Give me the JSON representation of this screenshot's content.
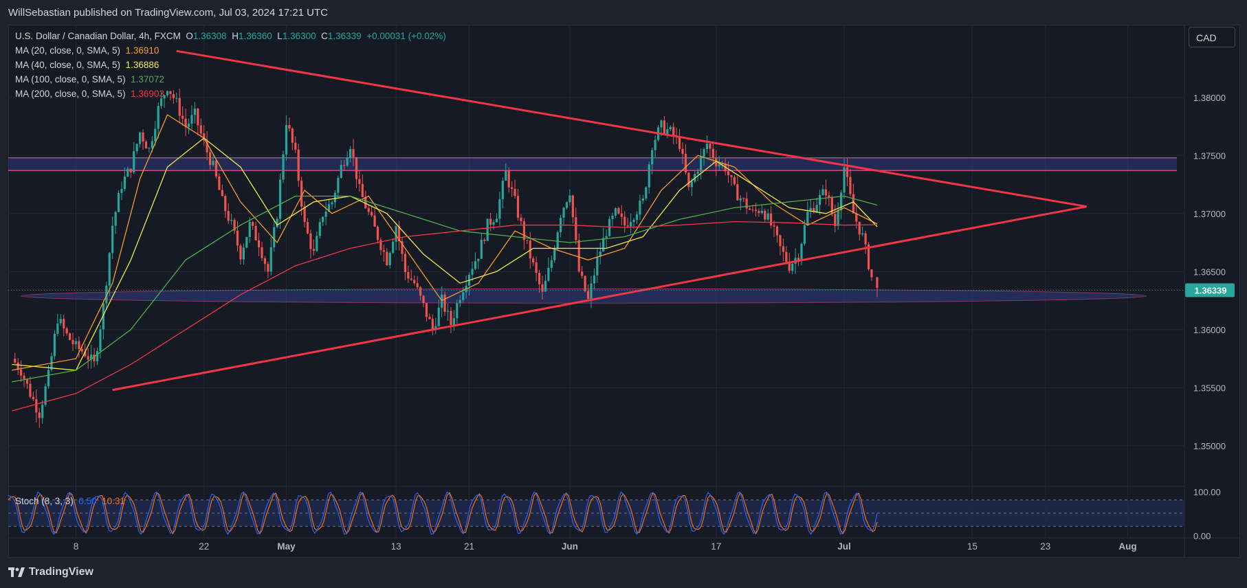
{
  "header": {
    "published": "WillSebastian published on TradingView.com, Jul 03, 2024 17:21 UTC"
  },
  "footer": {
    "brand": "TradingView"
  },
  "currency_button": "CAD",
  "legend": {
    "symbol": "U.S. Dollar / Canadian Dollar, 4h, FXCM",
    "o_label": "O",
    "o_value": "1.36308",
    "h_label": "H",
    "h_value": "1.36360",
    "l_label": "L",
    "l_value": "1.36300",
    "c_label": "C",
    "c_value": "1.36339",
    "change": "+0.00031 (+0.02%)",
    "mas": [
      {
        "label": "MA (20, close, 0, SMA, 5)",
        "value": "1.36910",
        "color": "#f59b2b"
      },
      {
        "label": "MA (40, close, 0, SMA, 5)",
        "value": "1.36886",
        "color": "#f5e94a"
      },
      {
        "label": "MA (100, close, 0, SMA, 5)",
        "value": "1.37072",
        "color": "#4caf50"
      },
      {
        "label": "MA (200, close, 0, SMA, 5)",
        "value": "1.36903",
        "color": "#f23645"
      }
    ]
  },
  "stoch_legend": {
    "label": "Stoch (8, 3, 3)",
    "k_value": "0.50",
    "d_value": "10.31",
    "k_color": "#2962ff",
    "d_color": "#ff6d00"
  },
  "chart_data": {
    "type": "candlestick",
    "symbol": "USDCAD",
    "timeframe": "4h",
    "y_ticks": [
      "1.38000",
      "1.37500",
      "1.37000",
      "1.36500",
      "1.36000",
      "1.35500",
      "1.35000"
    ],
    "y_tick_values": [
      1.38,
      1.375,
      1.37,
      1.365,
      1.36,
      1.355,
      1.35
    ],
    "ylim": [
      1.3465,
      1.3862
    ],
    "x_ticks": [
      {
        "label": "8",
        "day": 8
      },
      {
        "label": "22",
        "day": 22
      },
      {
        "label": "May",
        "day": 31,
        "bold": true
      },
      {
        "label": "13",
        "day": 43
      },
      {
        "label": "21",
        "day": 51
      },
      {
        "label": "Jun",
        "day": 62,
        "bold": true
      },
      {
        "label": "17",
        "day": 78
      },
      {
        "label": "Jul",
        "day": 92,
        "bold": true
      },
      {
        "label": "15",
        "day": 106
      },
      {
        "label": "23",
        "day": 114
      },
      {
        "label": "Aug",
        "day": 123,
        "bold": true
      }
    ],
    "current_price": {
      "label": "1.36339",
      "value": 1.36339
    },
    "close_path": [
      [
        1,
        1.3575
      ],
      [
        2,
        1.3565
      ],
      [
        3,
        1.3545
      ],
      [
        4,
        1.3528
      ],
      [
        5,
        1.356
      ],
      [
        6,
        1.361
      ],
      [
        7,
        1.3595
      ],
      [
        8,
        1.3585
      ],
      [
        9,
        1.358
      ],
      [
        10,
        1.357
      ],
      [
        11,
        1.362
      ],
      [
        12,
        1.369
      ],
      [
        13,
        1.3725
      ],
      [
        14,
        1.374
      ],
      [
        15,
        1.377
      ],
      [
        16,
        1.3755
      ],
      [
        17,
        1.379
      ],
      [
        18,
        1.381
      ],
      [
        19,
        1.3795
      ],
      [
        20,
        1.3775
      ],
      [
        21,
        1.3785
      ],
      [
        22,
        1.376
      ],
      [
        23,
        1.374
      ],
      [
        24,
        1.371
      ],
      [
        25,
        1.369
      ],
      [
        26,
        1.3665
      ],
      [
        27,
        1.369
      ],
      [
        28,
        1.3675
      ],
      [
        29,
        1.365
      ],
      [
        30,
        1.37
      ],
      [
        31,
        1.378
      ],
      [
        32,
        1.375
      ],
      [
        33,
        1.369
      ],
      [
        34,
        1.3665
      ],
      [
        35,
        1.37
      ],
      [
        36,
        1.371
      ],
      [
        37,
        1.374
      ],
      [
        38,
        1.376
      ],
      [
        39,
        1.372
      ],
      [
        40,
        1.37
      ],
      [
        41,
        1.368
      ],
      [
        42,
        1.366
      ],
      [
        43,
        1.369
      ],
      [
        44,
        1.365
      ],
      [
        45,
        1.364
      ],
      [
        46,
        1.362
      ],
      [
        47,
        1.36
      ],
      [
        48,
        1.3625
      ],
      [
        49,
        1.3605
      ],
      [
        50,
        1.363
      ],
      [
        51,
        1.365
      ],
      [
        52,
        1.3665
      ],
      [
        53,
        1.369
      ],
      [
        54,
        1.37
      ],
      [
        55,
        1.3735
      ],
      [
        56,
        1.371
      ],
      [
        57,
        1.368
      ],
      [
        58,
        1.3655
      ],
      [
        59,
        1.363
      ],
      [
        60,
        1.366
      ],
      [
        61,
        1.37
      ],
      [
        62,
        1.372
      ],
      [
        63,
        1.365
      ],
      [
        64,
        1.3625
      ],
      [
        65,
        1.366
      ],
      [
        66,
        1.3685
      ],
      [
        67,
        1.37
      ],
      [
        68,
        1.369
      ],
      [
        69,
        1.37
      ],
      [
        70,
        1.371
      ],
      [
        71,
        1.376
      ],
      [
        72,
        1.3775
      ],
      [
        73,
        1.377
      ],
      [
        74,
        1.376
      ],
      [
        75,
        1.372
      ],
      [
        76,
        1.374
      ],
      [
        77,
        1.376
      ],
      [
        78,
        1.3745
      ],
      [
        79,
        1.374
      ],
      [
        80,
        1.372
      ],
      [
        81,
        1.371
      ],
      [
        82,
        1.37
      ],
      [
        83,
        1.3705
      ],
      [
        84,
        1.369
      ],
      [
        85,
        1.367
      ],
      [
        86,
        1.3655
      ],
      [
        87,
        1.3665
      ],
      [
        88,
        1.37
      ],
      [
        89,
        1.371
      ],
      [
        90,
        1.372
      ],
      [
        91,
        1.369
      ],
      [
        92,
        1.374
      ],
      [
        93,
        1.37
      ],
      [
        94,
        1.368
      ],
      [
        95,
        1.3645
      ],
      [
        95.6,
        1.36339
      ]
    ],
    "moving_averages": [
      {
        "name": "MA 20",
        "color": "#f59b2b",
        "points": [
          [
            1,
            1.3565
          ],
          [
            8,
            1.3575
          ],
          [
            12,
            1.364
          ],
          [
            15,
            1.373
          ],
          [
            18,
            1.3785
          ],
          [
            22,
            1.3765
          ],
          [
            26,
            1.371
          ],
          [
            30,
            1.3675
          ],
          [
            33,
            1.372
          ],
          [
            36,
            1.37
          ],
          [
            40,
            1.3715
          ],
          [
            44,
            1.367
          ],
          [
            48,
            1.3625
          ],
          [
            52,
            1.364
          ],
          [
            56,
            1.3685
          ],
          [
            60,
            1.367
          ],
          [
            64,
            1.366
          ],
          [
            68,
            1.367
          ],
          [
            72,
            1.372
          ],
          [
            76,
            1.375
          ],
          [
            80,
            1.374
          ],
          [
            84,
            1.371
          ],
          [
            88,
            1.369
          ],
          [
            92,
            1.3705
          ],
          [
            95.6,
            1.3691
          ]
        ]
      },
      {
        "name": "MA 40",
        "color": "#f5e94a",
        "points": [
          [
            1,
            1.357
          ],
          [
            8,
            1.3565
          ],
          [
            14,
            1.366
          ],
          [
            18,
            1.374
          ],
          [
            22,
            1.3765
          ],
          [
            26,
            1.374
          ],
          [
            30,
            1.369
          ],
          [
            34,
            1.371
          ],
          [
            38,
            1.3715
          ],
          [
            42,
            1.37
          ],
          [
            46,
            1.3665
          ],
          [
            50,
            1.364
          ],
          [
            54,
            1.365
          ],
          [
            58,
            1.367
          ],
          [
            62,
            1.367
          ],
          [
            66,
            1.367
          ],
          [
            70,
            1.368
          ],
          [
            74,
            1.372
          ],
          [
            78,
            1.3745
          ],
          [
            82,
            1.3725
          ],
          [
            86,
            1.3705
          ],
          [
            90,
            1.37
          ],
          [
            93,
            1.371
          ],
          [
            95.6,
            1.36886
          ]
        ]
      },
      {
        "name": "MA 100",
        "color": "#4caf50",
        "points": [
          [
            1,
            1.3555
          ],
          [
            8,
            1.3565
          ],
          [
            14,
            1.36
          ],
          [
            20,
            1.366
          ],
          [
            26,
            1.369
          ],
          [
            32,
            1.3715
          ],
          [
            38,
            1.3715
          ],
          [
            44,
            1.37
          ],
          [
            50,
            1.3685
          ],
          [
            56,
            1.368
          ],
          [
            62,
            1.3675
          ],
          [
            68,
            1.368
          ],
          [
            74,
            1.3695
          ],
          [
            80,
            1.3705
          ],
          [
            86,
            1.371
          ],
          [
            92,
            1.3715
          ],
          [
            95.6,
            1.37072
          ]
        ]
      },
      {
        "name": "MA 200",
        "color": "#f23645",
        "points": [
          [
            1,
            1.353
          ],
          [
            8,
            1.3545
          ],
          [
            14,
            1.357
          ],
          [
            20,
            1.36
          ],
          [
            26,
            1.363
          ],
          [
            32,
            1.3655
          ],
          [
            38,
            1.367
          ],
          [
            44,
            1.368
          ],
          [
            50,
            1.3685
          ],
          [
            56,
            1.369
          ],
          [
            62,
            1.369
          ],
          [
            68,
            1.3688
          ],
          [
            74,
            1.369
          ],
          [
            80,
            1.3693
          ],
          [
            86,
            1.3692
          ],
          [
            92,
            1.369
          ],
          [
            95.6,
            1.36903
          ]
        ]
      }
    ],
    "trendlines": [
      {
        "name": "upper",
        "from": [
          19,
          1.384
        ],
        "to": [
          118.5,
          1.3706
        ],
        "color": "#f23645"
      },
      {
        "name": "lower",
        "from": [
          12,
          1.3548
        ],
        "to": [
          118.5,
          1.3706
        ],
        "color": "#f23645"
      }
    ],
    "zones": [
      {
        "name": "resistance",
        "y_top": 1.3745,
        "y_bottom": 1.374
      },
      {
        "name": "support",
        "y_top": 1.3634,
        "y_bottom": 1.3624
      }
    ],
    "stochastic": {
      "ticks": [
        "100.00",
        "0.00"
      ],
      "bands": [
        80,
        50,
        20
      ],
      "cycles": 30,
      "end_day": 95.6
    }
  }
}
